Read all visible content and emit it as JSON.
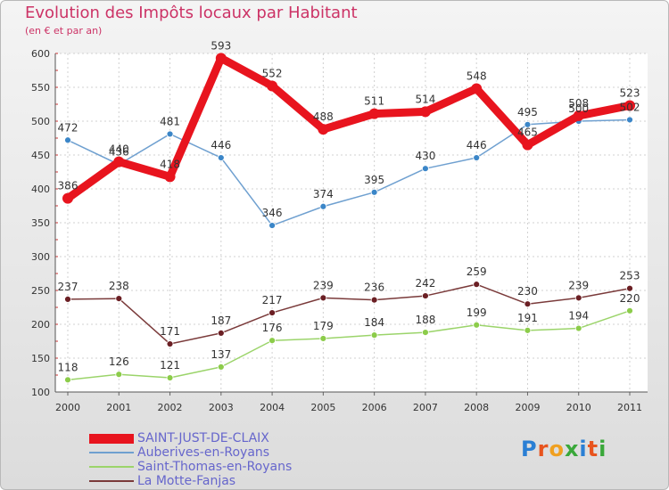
{
  "header": {
    "title": "Evolution des Impôts locaux par Habitant",
    "subtitle": "(en € et par an)"
  },
  "logo": {
    "text": "Proxiti",
    "letters": [
      "P",
      "r",
      "o",
      "x",
      "i",
      "t",
      "i"
    ],
    "colors": [
      "#2a7fd4",
      "#e8541e",
      "#f0a020",
      "#3aa83a",
      "#2a7fd4",
      "#e8541e",
      "#3aa83a"
    ]
  },
  "chart_data": {
    "type": "line",
    "title": "Evolution des Impôts locaux par Habitant",
    "subtitle": "(en € et par an)",
    "categories": [
      "2000",
      "2001",
      "2002",
      "2003",
      "2004",
      "2005",
      "2006",
      "2007",
      "2008",
      "2009",
      "2010",
      "2011"
    ],
    "ylim": [
      100,
      600
    ],
    "yticks": [
      100,
      150,
      200,
      250,
      300,
      350,
      400,
      450,
      500,
      550,
      600
    ],
    "grid": true,
    "legend_position": "bottom-left",
    "series": [
      {
        "name": "SAINT-JUST-DE-CLAIX",
        "color": "#e8141e",
        "dot": "#e8141e",
        "width": "thick",
        "values": [
          386,
          440,
          418,
          593,
          552,
          488,
          511,
          514,
          548,
          465,
          508,
          523
        ],
        "labels": [
          "386",
          "440",
          "418",
          "593",
          "552",
          "488",
          "511",
          "514",
          "548",
          "465",
          "508",
          "523"
        ]
      },
      {
        "name": "Auberives-en-Royans",
        "color": "#6fa0d0",
        "dot": "#3b86c8",
        "width": "thin",
        "values": [
          472,
          436,
          481,
          446,
          346,
          374,
          395,
          430,
          446,
          495,
          500,
          502
        ],
        "labels": [
          "472",
          "436",
          "481",
          "446",
          "346",
          "374",
          "395",
          "430",
          "446",
          "495",
          "500",
          "502"
        ]
      },
      {
        "name": "Saint-Thomas-en-Royans",
        "color": "#9bd46a",
        "dot": "#8ccc4a",
        "width": "thin",
        "values": [
          118,
          126,
          121,
          137,
          176,
          179,
          184,
          188,
          199,
          191,
          194,
          220
        ],
        "labels": [
          "118",
          "126",
          "121",
          "137",
          "176",
          "179",
          "184",
          "188",
          "199",
          "191",
          "194",
          "220"
        ]
      },
      {
        "name": "La Motte-Fanjas",
        "color": "#7a3a3a",
        "dot": "#6b1f24",
        "width": "thin",
        "values": [
          237,
          238,
          171,
          187,
          217,
          239,
          236,
          242,
          259,
          230,
          239,
          253
        ],
        "labels": [
          "237",
          "238",
          "171",
          "187",
          "217",
          "239",
          "236",
          "242",
          "259",
          "230",
          "239",
          "253"
        ]
      }
    ]
  }
}
